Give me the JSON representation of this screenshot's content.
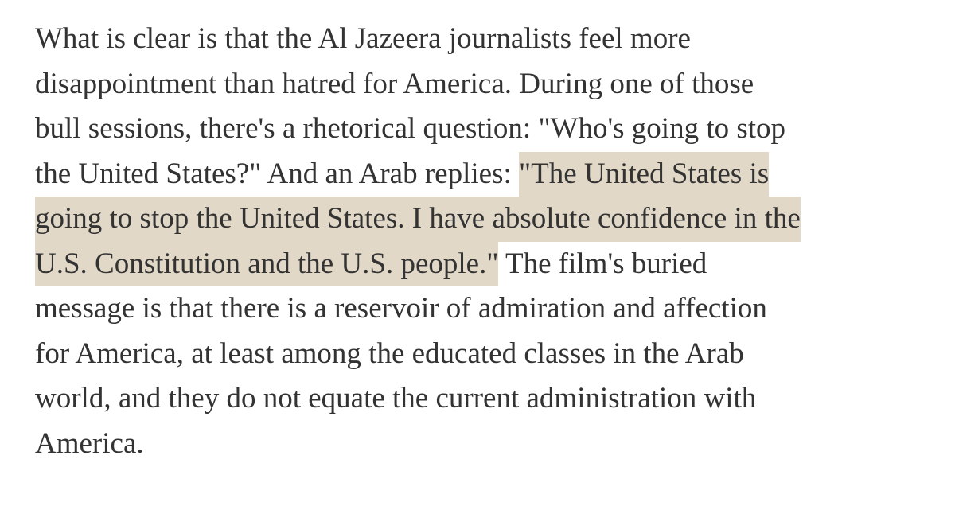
{
  "article": {
    "highlight_color": "#e2d8c8",
    "lines": [
      {
        "text": "What is clear is that the Al Jazeera journalists feel more"
      },
      {
        "text": "disappointment than hatred for America. During one of those"
      },
      {
        "text": "bull sessions, there's a rhetorical question: \"Who's going to stop"
      },
      {
        "before": "the United States?\" And an Arab replies: ",
        "highlight": "\"The United States is"
      },
      {
        "highlight": "going to stop the United States. I have absolute confidence in the"
      },
      {
        "highlight": "U.S. Constitution and the U.S. people.\"",
        "after": " The film's buried"
      },
      {
        "text": "message is that there is a reservoir of admiration and affection"
      },
      {
        "text": "for America, at least among the educated classes in the Arab"
      },
      {
        "text": "world, and they do not equate the current administration with"
      },
      {
        "text": "America."
      }
    ]
  }
}
